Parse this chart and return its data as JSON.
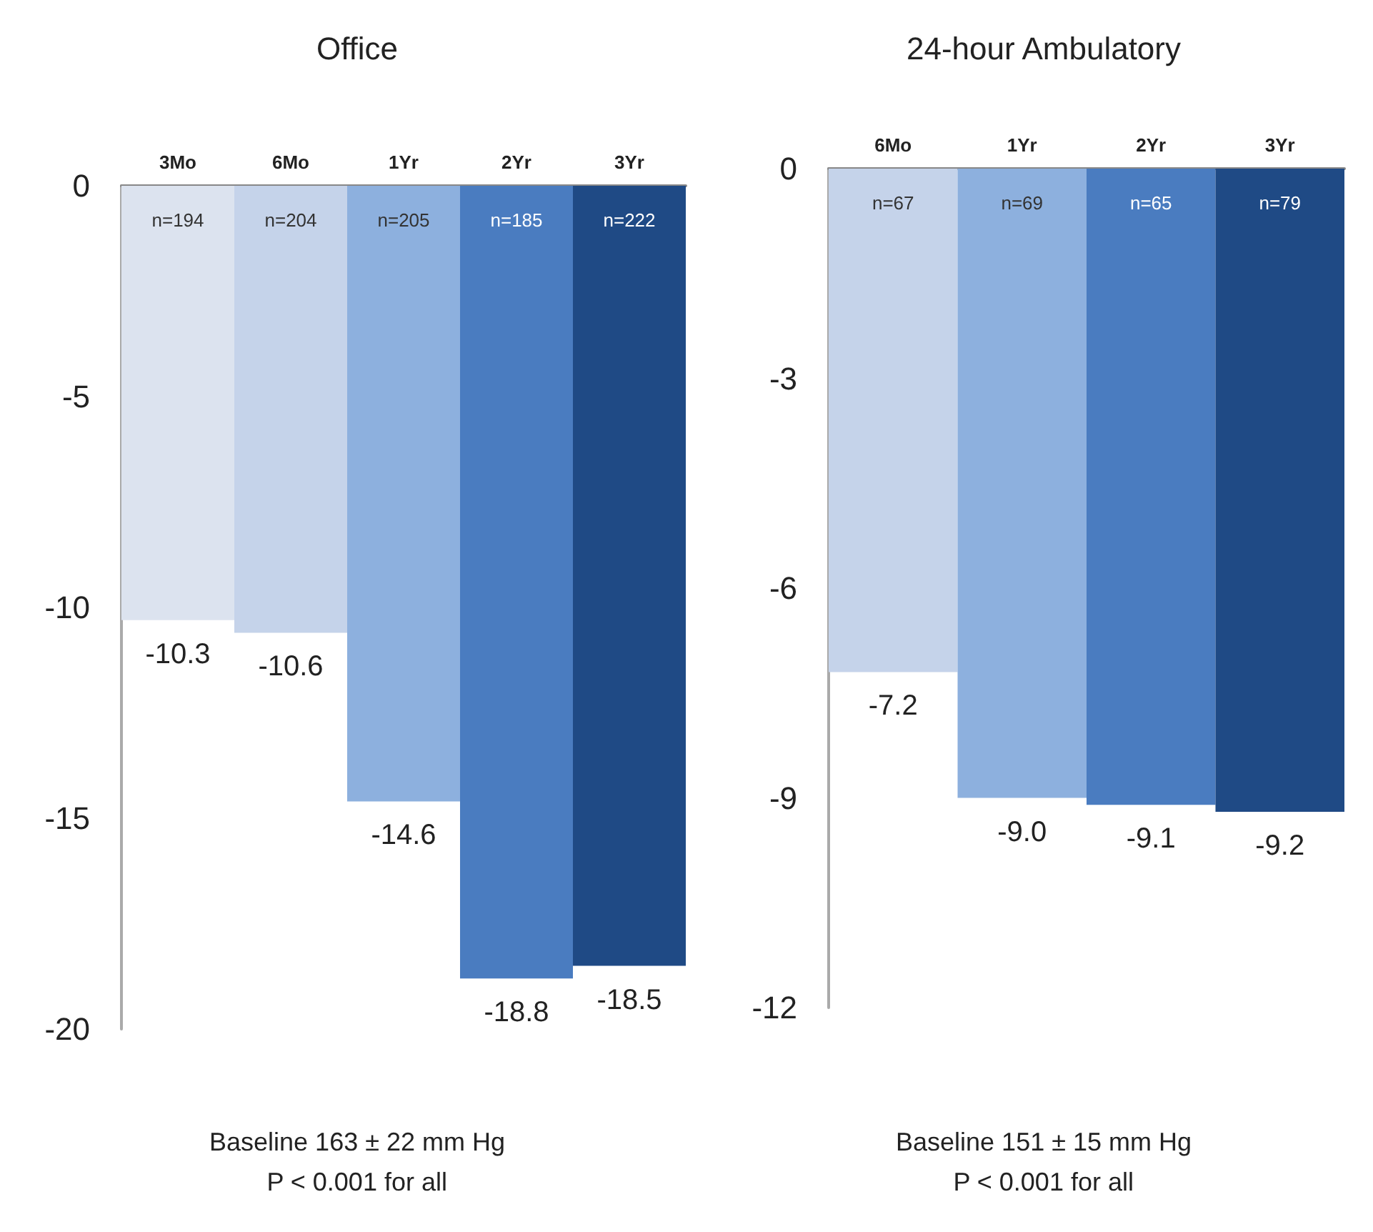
{
  "chart_data": [
    {
      "type": "bar",
      "title": "Office",
      "categories": [
        "3Mo",
        "6Mo",
        "1Yr",
        "2Yr",
        "3Yr"
      ],
      "values": [
        -10.3,
        -10.6,
        -14.6,
        -18.8,
        -18.5
      ],
      "colors": [
        "#dce3ef",
        "#c5d3ea",
        "#8db0de",
        "#4a7cc0",
        "#1f4a85"
      ],
      "value_labels": [
        "-10.3",
        "-10.6",
        "-14.6",
        "-18.8",
        "-18.5"
      ],
      "ylim": [
        -20,
        0
      ],
      "yticks": [
        -20,
        -15,
        -10,
        -5,
        0
      ],
      "grid": false,
      "annotations": [
        {
          "text": "n=194",
          "x": "3Mo",
          "y": 0
        },
        {
          "text": "n=204",
          "x": "6Mo",
          "y": 0
        },
        {
          "text": "n=205",
          "x": "1Yr",
          "y": 0
        },
        {
          "text": "n=185",
          "x": "2Yr",
          "y": 0
        },
        {
          "text": "n=222",
          "x": "3Yr",
          "y": 0
        },
        "Baseline 163 ± 22 mm Hg",
        "P < 0.001 for all"
      ]
    },
    {
      "type": "bar",
      "title": "24-hour Ambulatory",
      "categories": [
        "6Mo",
        "1Yr",
        "2Yr",
        "3Yr"
      ],
      "values": [
        -7.2,
        -9.0,
        -9.1,
        -9.2
      ],
      "colors": [
        "#c5d3ea",
        "#8db0de",
        "#4a7cc0",
        "#1f4a85"
      ],
      "value_labels": [
        "-7.2",
        "-9.0",
        "-9.1",
        "-9.2"
      ],
      "ylim": [
        -12,
        0
      ],
      "yticks": [
        -12,
        -9,
        -6,
        -3,
        0
      ],
      "grid": false,
      "annotations": [
        {
          "text": "n=67",
          "x": "6Mo",
          "y": 0
        },
        {
          "text": "n=69",
          "x": "1Yr",
          "y": 0
        },
        {
          "text": "n=65",
          "x": "2Yr",
          "y": 0
        },
        {
          "text": "n=79",
          "x": "3Yr",
          "y": 0
        },
        "Baseline 151 ± 15 mm Hg",
        "P < 0.001 for all"
      ]
    }
  ]
}
